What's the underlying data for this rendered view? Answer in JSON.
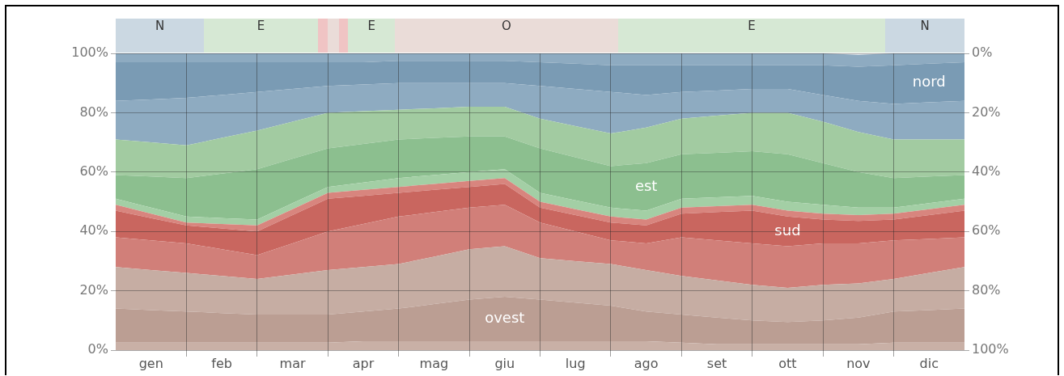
{
  "chart_data": {
    "type": "area",
    "stacked": true,
    "categories": [
      null,
      "gen",
      null,
      "feb",
      null,
      "mar",
      null,
      "apr",
      null,
      "mag",
      null,
      "giu",
      null,
      "lug",
      null,
      "ago",
      null,
      "set",
      null,
      "ott",
      null,
      "nov",
      null,
      "dic",
      null
    ],
    "ylim": [
      0,
      100
    ],
    "yticks": [
      {
        "value": 0,
        "label": "0%"
      },
      {
        "value": 20,
        "label": "20%"
      },
      {
        "value": 40,
        "label": "40%"
      },
      {
        "value": 60,
        "label": "60%"
      },
      {
        "value": 80,
        "label": "80%"
      },
      {
        "value": 100,
        "label": "100%"
      }
    ],
    "y2lim": [
      100,
      0
    ],
    "y2ticks": [
      {
        "value": 0,
        "label": "0%"
      },
      {
        "value": 20,
        "label": "20%"
      },
      {
        "value": 40,
        "label": "40%"
      },
      {
        "value": 60,
        "label": "60%"
      },
      {
        "value": 80,
        "label": "80%"
      },
      {
        "value": 100,
        "label": "100%"
      }
    ],
    "grid": true,
    "legend": false,
    "marker": "none",
    "series": [
      {
        "color": "#c9b0a6",
        "values": [
          2.5,
          2.5,
          2.5,
          2.5,
          2.5,
          2.5,
          2.5,
          3,
          3,
          3,
          3,
          3,
          3,
          3,
          3,
          3,
          2.5,
          2,
          2,
          2,
          2,
          2,
          2.5,
          2.5,
          2.5
        ]
      },
      {
        "name": "ovest",
        "color": "#bb9e93",
        "values": [
          11.5,
          11,
          10.5,
          10,
          9.5,
          9.5,
          9.5,
          10,
          11,
          12.5,
          14,
          15,
          14,
          13,
          12,
          10,
          9.5,
          9,
          8,
          7.5,
          8,
          9,
          10.5,
          11,
          11.5
        ]
      },
      {
        "color": "#c6ada3",
        "values": [
          14,
          13.5,
          13,
          12.5,
          12,
          13.5,
          15,
          15,
          15,
          16,
          17,
          17,
          14,
          14,
          14,
          14,
          13,
          12.5,
          12,
          11.5,
          12,
          11.5,
          11,
          12.5,
          14
        ]
      },
      {
        "color": "#d17f79",
        "values": [
          10,
          10,
          10,
          9,
          8,
          10.5,
          13,
          14.5,
          16,
          15,
          14,
          14,
          12,
          10,
          8,
          9,
          13,
          13.5,
          14,
          14,
          14,
          13.5,
          13,
          11.5,
          10
        ]
      },
      {
        "name": "sud",
        "color": "#c9665f",
        "values": [
          9,
          7.5,
          6,
          7,
          8,
          9.5,
          11,
          9.5,
          8,
          7.5,
          7,
          7,
          5,
          5.5,
          6,
          6,
          8,
          9.5,
          11,
          10,
          8,
          7.5,
          7,
          8,
          9
        ]
      },
      {
        "color": "#d8857e",
        "values": [
          2,
          1.5,
          1,
          1.5,
          2,
          2,
          2,
          2,
          2,
          2,
          2,
          2,
          2,
          2,
          2,
          2,
          2,
          2,
          2,
          2,
          2,
          2,
          2,
          2,
          2
        ]
      },
      {
        "color": "#a3cfa5",
        "values": [
          2,
          2,
          2,
          2,
          2,
          2,
          2,
          2.5,
          3,
          3,
          3,
          3,
          3,
          3,
          3,
          3,
          3,
          3,
          3,
          3,
          3,
          2.5,
          2,
          2,
          2
        ]
      },
      {
        "name": "est",
        "color": "#8cbf8f",
        "values": [
          8,
          10.5,
          13,
          15,
          17,
          15,
          13,
          13,
          13,
          12.5,
          12,
          11,
          15,
          14.5,
          14,
          16,
          15,
          15,
          15,
          16,
          14,
          12,
          10,
          9,
          8
        ]
      },
      {
        "color": "#a2cba1",
        "values": [
          12,
          11.5,
          11,
          12,
          13,
          12.5,
          12,
          11,
          10,
          10,
          10,
          10,
          10,
          10.5,
          11,
          12,
          12,
          12.5,
          13,
          14,
          14,
          13.5,
          13,
          12.5,
          12
        ]
      },
      {
        "color": "#8eabc1",
        "values": [
          13,
          14.5,
          16,
          14.5,
          13,
          11,
          9,
          9,
          9,
          8.5,
          8,
          8,
          11,
          12.5,
          14,
          11,
          9,
          8.5,
          8,
          8,
          9,
          10.5,
          12,
          12.5,
          13
        ]
      },
      {
        "name": "nord",
        "color": "#7a9bb4",
        "values": [
          13,
          12.5,
          12,
          11,
          10,
          9,
          8,
          7.5,
          7.5,
          7.5,
          7.5,
          7.5,
          8,
          8.5,
          9,
          10,
          9,
          8.5,
          8,
          8,
          10,
          11.5,
          13,
          13,
          13
        ]
      },
      {
        "color": "#8eabc1",
        "values": [
          3,
          3,
          3,
          3,
          3,
          3,
          3,
          3,
          2.5,
          2.5,
          2.5,
          2.5,
          3,
          3.5,
          4,
          4,
          4,
          4,
          4,
          4,
          4,
          4,
          4,
          3.5,
          3
        ]
      }
    ],
    "annotations": [
      "N",
      "E",
      "E",
      "O",
      "E",
      "N"
    ]
  }
}
